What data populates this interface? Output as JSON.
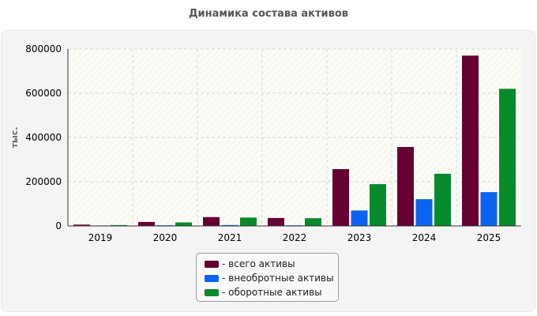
{
  "chart_data": {
    "type": "bar",
    "title": "Динамика состава активов",
    "ylabel": "тыс.",
    "xlabel": "",
    "categories": [
      "2019",
      "2020",
      "2021",
      "2022",
      "2023",
      "2024",
      "2025"
    ],
    "ylim": [
      0,
      800000
    ],
    "yticks": [
      0,
      200000,
      400000,
      600000,
      800000
    ],
    "grid": true,
    "legend_position": "bottom-center",
    "legend_prefix": "- ",
    "series": [
      {
        "name": "всего активы",
        "color": "#660033",
        "values": [
          6000,
          18000,
          40000,
          36000,
          257000,
          357000,
          770000
        ]
      },
      {
        "name": "внеобротные активы",
        "color": "#0a64f0",
        "values": [
          2000,
          3000,
          4000,
          3000,
          70000,
          121000,
          153000
        ]
      },
      {
        "name": "оборотные активы",
        "color": "#078a2c",
        "values": [
          4000,
          16000,
          38000,
          35000,
          189000,
          236000,
          620000
        ]
      }
    ]
  }
}
